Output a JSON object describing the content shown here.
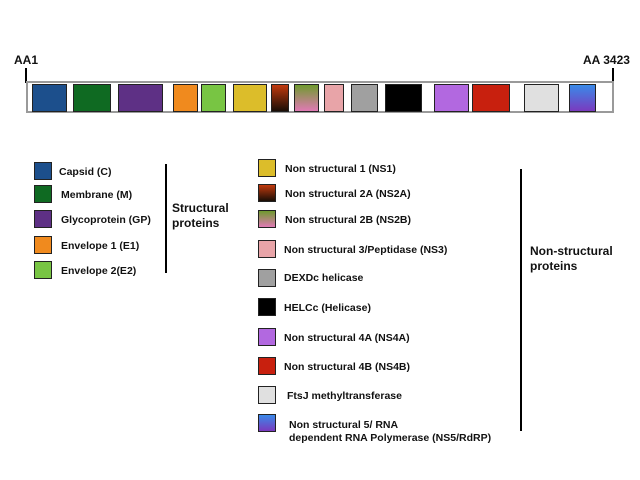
{
  "genome": {
    "start_label": "AA1",
    "end_label": "AA 3423",
    "segments": [
      {
        "id": "capsid",
        "color": "#1c4f8c"
      },
      {
        "id": "membrane",
        "color": "#0f6a22"
      },
      {
        "id": "glycoprotein",
        "color": "#5e3085"
      },
      {
        "id": "envelope1",
        "color": "#f08a1e"
      },
      {
        "id": "envelope2",
        "color": "#78c543"
      },
      {
        "id": "ns1",
        "color": "#dcbd2a"
      },
      {
        "id": "ns2a",
        "gradient": [
          "#c13a0e",
          "#1a0e06"
        ]
      },
      {
        "id": "ns2b",
        "gradient": [
          "#6f9a2e",
          "#e07ab4"
        ]
      },
      {
        "id": "ns3",
        "color": "#e8a4a8"
      },
      {
        "id": "dexdc",
        "color": "#a0a0a0"
      },
      {
        "id": "helc",
        "color": "#000000"
      },
      {
        "id": "ns4a",
        "color": "#b268e0"
      },
      {
        "id": "ns4b",
        "color": "#c8200e"
      },
      {
        "id": "ftsj",
        "color": "#e0e0e0"
      },
      {
        "id": "ns5",
        "gradient": [
          "#3a8ae8",
          "#7a3abf"
        ]
      }
    ]
  },
  "legend": {
    "structural": {
      "group_label_line1": "Structural",
      "group_label_line2": "proteins",
      "items": [
        {
          "label": "Capsid (C)",
          "color": "#1c4f8c"
        },
        {
          "label": "Membrane (M)",
          "color": "#0f6a22"
        },
        {
          "label": "Glycoprotein (GP)",
          "color": "#5e3085"
        },
        {
          "label": "Envelope 1 (E1)",
          "color": "#f08a1e"
        },
        {
          "label": "Envelope 2(E2)",
          "color": "#78c543"
        }
      ]
    },
    "nonstructural": {
      "group_label_line1": "Non-structural",
      "group_label_line2": "proteins",
      "items": [
        {
          "label": "Non structural 1 (NS1)",
          "color": "#dcbd2a"
        },
        {
          "label": "Non structural 2A (NS2A)",
          "gradient": [
            "#c13a0e",
            "#1a0e06"
          ]
        },
        {
          "label": "Non structural 2B (NS2B)",
          "gradient": [
            "#6f9a2e",
            "#e07ab4"
          ]
        },
        {
          "label": "Non structural 3/Peptidase  (NS3)",
          "color": "#e8a4a8"
        },
        {
          "label": "DEXDc helicase",
          "color": "#a0a0a0"
        },
        {
          "label": "HELCc (Helicase)",
          "color": "#000000"
        },
        {
          "label": "Non structural 4A (NS4A)",
          "color": "#b268e0"
        },
        {
          "label": "Non structural 4B (NS4B)",
          "color": "#c8200e"
        },
        {
          "label": "FtsJ methyltransferase",
          "color": "#e0e0e0"
        },
        {
          "label": "Non structural 5/ RNA",
          "label2": "dependent RNA Polymerase (NS5/RdRP)",
          "gradient": [
            "#3a8ae8",
            "#7a3abf"
          ]
        }
      ]
    }
  }
}
